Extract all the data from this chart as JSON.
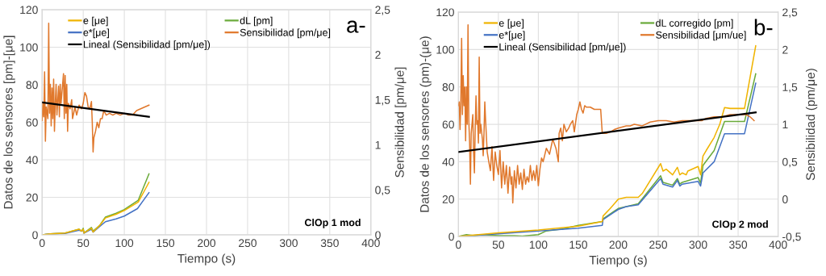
{
  "chart_data": [
    {
      "type": "line",
      "xlabel": "Tiempo (s)",
      "ylabel": "Datos de los sensores [pm]-[μe]",
      "y2label": "Sensibilidad [pm/μe]",
      "xlim": [
        0,
        400
      ],
      "xticks": [
        0,
        50,
        100,
        150,
        200,
        250,
        300,
        350,
        400
      ],
      "ylim": [
        0,
        120
      ],
      "yticks": [
        0,
        20,
        40,
        60,
        80,
        100,
        120
      ],
      "y2lim": [
        0,
        2.5
      ],
      "y2ticks": [
        0,
        {
          "value": 0.5,
          "label": "0,5"
        },
        1,
        {
          "value": 1.5,
          "label": "1,5"
        },
        2,
        {
          "value": 2.5,
          "label": "2,5"
        }
      ],
      "grid": true,
      "legend": "top",
      "marker": "none",
      "line_style": "solid",
      "annotations": [
        "a-",
        "ClOp 1 mod"
      ],
      "series": [
        {
          "name": "e [μe]",
          "color": "#f0b400",
          "x": [
            0,
            10,
            28,
            45,
            48,
            50,
            51,
            60,
            62,
            70,
            77,
            90,
            100,
            117,
            130
          ],
          "values": [
            0,
            0.5,
            1,
            3,
            2,
            3,
            1,
            3.5,
            1.5,
            5,
            9,
            11,
            13,
            17.5,
            28
          ]
        },
        {
          "name": "e*[μe]",
          "color": "#4472c4",
          "x": [
            0,
            10,
            28,
            45,
            48,
            50,
            51,
            60,
            62,
            70,
            77,
            90,
            100,
            116,
            130
          ],
          "values": [
            0,
            0.5,
            0.8,
            2.5,
            2,
            2.5,
            1,
            3,
            1.5,
            4.5,
            7,
            8.5,
            10,
            14,
            22.5
          ]
        },
        {
          "name": "Lineal (Sensibilidad [pm/μe])",
          "color": "#000000",
          "axis": "y2",
          "x": [
            0,
            130
          ],
          "values": [
            1.47,
            1.31
          ]
        },
        {
          "name": "dL [pm]",
          "color": "#6aaa3a",
          "x": [
            0,
            10,
            28,
            45,
            48,
            50,
            51,
            60,
            62,
            70,
            77,
            90,
            100,
            117,
            130
          ],
          "values": [
            0,
            0.5,
            1,
            3,
            2,
            3.5,
            1,
            4,
            2,
            5,
            9.5,
            11.5,
            13.5,
            18.5,
            32.5
          ]
        },
        {
          "name": "Sensibilidad [pm/μe]",
          "color": "#e0782c",
          "axis": "y2",
          "x": [
            0,
            1,
            2,
            3,
            4,
            5,
            7,
            8,
            9,
            10,
            11,
            12,
            13,
            14,
            15,
            16,
            17,
            18,
            20,
            21,
            22,
            23,
            26,
            27,
            28,
            29,
            30,
            31,
            32,
            34,
            36,
            37,
            40,
            42,
            45,
            48,
            50,
            52,
            54,
            56,
            58,
            60,
            61,
            62,
            63,
            65,
            67,
            69,
            71,
            73,
            75,
            78,
            82,
            86,
            90,
            95,
            100,
            105,
            110,
            115,
            120,
            125,
            130
          ],
          "values": [
            1.27,
            1.46,
            1.31,
            1.81,
            1.04,
            1.42,
            1.29,
            2.35,
            1.35,
            1.67,
            1.21,
            1.63,
            1.29,
            1.73,
            1.15,
            1.46,
            1.67,
            1.33,
            1.65,
            1.31,
            1.67,
            1.46,
            1.79,
            1.29,
            1.77,
            1.35,
            1.67,
            1.15,
            1.46,
            1.4,
            1.5,
            1.29,
            1.42,
            1.33,
            1.44,
            1.4,
            1.46,
            1.58,
            1.54,
            1.42,
            1.4,
            1.48,
            1.25,
            0.92,
            1.08,
            1.15,
            1.25,
            1.19,
            1.29,
            1.29,
            1.38,
            1.33,
            1.35,
            1.33,
            1.35,
            1.33,
            1.35,
            1.33,
            1.33,
            1.38,
            1.4,
            1.42,
            1.44
          ]
        }
      ]
    },
    {
      "type": "line",
      "xlabel": "Tiempo (s)",
      "ylabel": "Datos de los sensores (pm)-(μe)",
      "y2label": "Sensibilidad (pm/μe)",
      "xlim": [
        0,
        400
      ],
      "xticks": [
        0,
        50,
        100,
        150,
        200,
        250,
        300,
        350,
        400
      ],
      "ylim": [
        0,
        120
      ],
      "yticks": [
        0,
        20,
        40,
        60,
        80,
        100,
        120
      ],
      "y2lim": [
        -0.5,
        2.5
      ],
      "y2ticks": [
        {
          "value": -0.5,
          "label": "-0,5"
        },
        0,
        {
          "value": 0.5,
          "label": "0,5"
        },
        1,
        {
          "value": 1.5,
          "label": "1,5"
        },
        2,
        {
          "value": 2.5,
          "label": "2,5"
        }
      ],
      "grid": true,
      "legend": "top",
      "marker": "none",
      "line_style": "solid",
      "annotations": [
        "b-",
        "ClOp 2 mod"
      ],
      "series": [
        {
          "name": "e [μe]",
          "color": "#f0b400",
          "x": [
            0,
            50,
            100,
            150,
            180,
            181,
            190,
            200,
            210,
            225,
            230,
            253,
            256,
            260,
            268,
            274,
            277,
            280,
            285,
            287,
            300,
            303,
            306,
            310,
            320,
            327,
            333,
            340,
            358,
            372
          ],
          "values": [
            0,
            2,
            3.5,
            5.5,
            8,
            11,
            15,
            20,
            21,
            21,
            23,
            39,
            35,
            36,
            33,
            37,
            33,
            34,
            33,
            35,
            37.5,
            33,
            43,
            46,
            53,
            60,
            69,
            68.5,
            68.5,
            102
          ]
        },
        {
          "name": "e*[μe]",
          "color": "#4472c4",
          "x": [
            0,
            50,
            100,
            150,
            180,
            181,
            200,
            210,
            225,
            253,
            256,
            268,
            274,
            277,
            280,
            300,
            303,
            306,
            320,
            333,
            358,
            372
          ],
          "values": [
            0,
            1.5,
            3,
            4.5,
            6,
            9,
            14.5,
            16,
            17,
            31,
            28,
            26.5,
            30,
            27,
            28,
            29.5,
            27,
            34,
            40,
            55,
            55,
            82
          ]
        },
        {
          "name": "Lineal (Sensibilidad [pm/μe])",
          "color": "#000000",
          "axis": "y2",
          "x": [
            0,
            372
          ],
          "values": [
            0.63,
            1.16
          ]
        },
        {
          "name": "dL corregido [pm]",
          "color": "#6aaa3a",
          "x": [
            0,
            10,
            20,
            30,
            50,
            70,
            80,
            100,
            110,
            130,
            150,
            180,
            181,
            200,
            210,
            225,
            253,
            256,
            268,
            274,
            277,
            280,
            300,
            303,
            306,
            320,
            333,
            358,
            372
          ],
          "values": [
            0,
            1,
            0.5,
            1,
            0.5,
            0.5,
            0.2,
            1,
            3,
            4,
            6,
            8,
            9.5,
            15,
            16,
            17.5,
            32.5,
            29,
            27.5,
            31,
            28,
            29,
            31.5,
            28.5,
            38,
            46,
            61.5,
            61.5,
            87
          ]
        },
        {
          "name": "Sensibilidad [μm/ue]",
          "color": "#e0782c",
          "axis": "y2",
          "x": [
            0,
            1,
            2,
            3,
            4,
            5,
            6,
            7,
            8,
            9,
            10,
            11,
            12,
            13,
            14,
            15,
            16,
            18,
            19,
            20,
            21,
            22,
            23,
            24,
            25,
            26,
            27,
            28,
            30,
            31,
            32,
            33,
            34,
            36,
            38,
            40,
            42,
            44,
            46,
            48,
            50,
            52,
            54,
            56,
            58,
            60,
            62,
            64,
            66,
            67,
            68,
            70,
            72,
            74,
            76,
            78,
            80,
            82,
            84,
            86,
            88,
            90,
            92,
            94,
            96,
            98,
            100,
            102,
            104,
            106,
            110,
            114,
            118,
            122,
            125,
            126,
            128,
            130,
            132,
            135,
            138,
            140,
            143,
            145,
            148,
            150,
            152,
            154,
            156,
            158,
            160,
            165,
            170,
            178,
            180,
            182,
            185,
            190,
            195,
            200,
            210,
            215,
            220,
            230,
            240,
            250,
            260,
            270,
            280,
            290,
            300,
            305,
            310,
            320,
            330,
            340,
            350,
            360,
            365,
            370
          ],
          "values": [
            1.25,
            1.3,
            0.93,
            1.3,
            2.15,
            1.13,
            1.65,
            1.25,
            1.5,
            0.78,
            1.5,
            1.0,
            2.33,
            1.05,
            0.75,
            0.2,
            0.88,
            1.13,
            0.63,
            0.35,
            0.95,
            1.38,
            1.0,
            1.05,
            0.75,
            1.9,
            0.88,
            1.0,
            0.8,
            0.58,
            0.88,
            1.3,
            1.05,
            0.63,
            0.5,
            0.38,
            0.7,
            0.25,
            0.63,
            0.45,
            0.33,
            0.65,
            0.15,
            0.5,
            0.2,
            0.45,
            0.08,
            0.43,
            0.2,
            0.3,
            -0.05,
            0.38,
            0.15,
            0.45,
            0.2,
            0.35,
            0.13,
            0.4,
            0.2,
            0.3,
            0.23,
            0.45,
            0.25,
            0.38,
            0.25,
            0.45,
            0.18,
            0.4,
            0.55,
            0.5,
            0.68,
            0.6,
            0.8,
            0.68,
            0.5,
            0.88,
            0.95,
            0.78,
            1.0,
            0.9,
            0.95,
            1.0,
            1.05,
            0.9,
            1.13,
            1.2,
            1.3,
            1.2,
            1.15,
            1.25,
            1.23,
            1.23,
            1.2,
            1.2,
            0.88,
            0.88,
            0.88,
            0.9,
            0.93,
            0.95,
            0.98,
            0.98,
            1.0,
            0.98,
            1.03,
            1.05,
            1.05,
            1.03,
            1.05,
            1.05,
            1.05,
            1.05,
            1.08,
            1.1,
            1.1,
            1.13,
            1.13,
            1.13,
            1.1,
            1.05
          ]
        }
      ]
    }
  ]
}
